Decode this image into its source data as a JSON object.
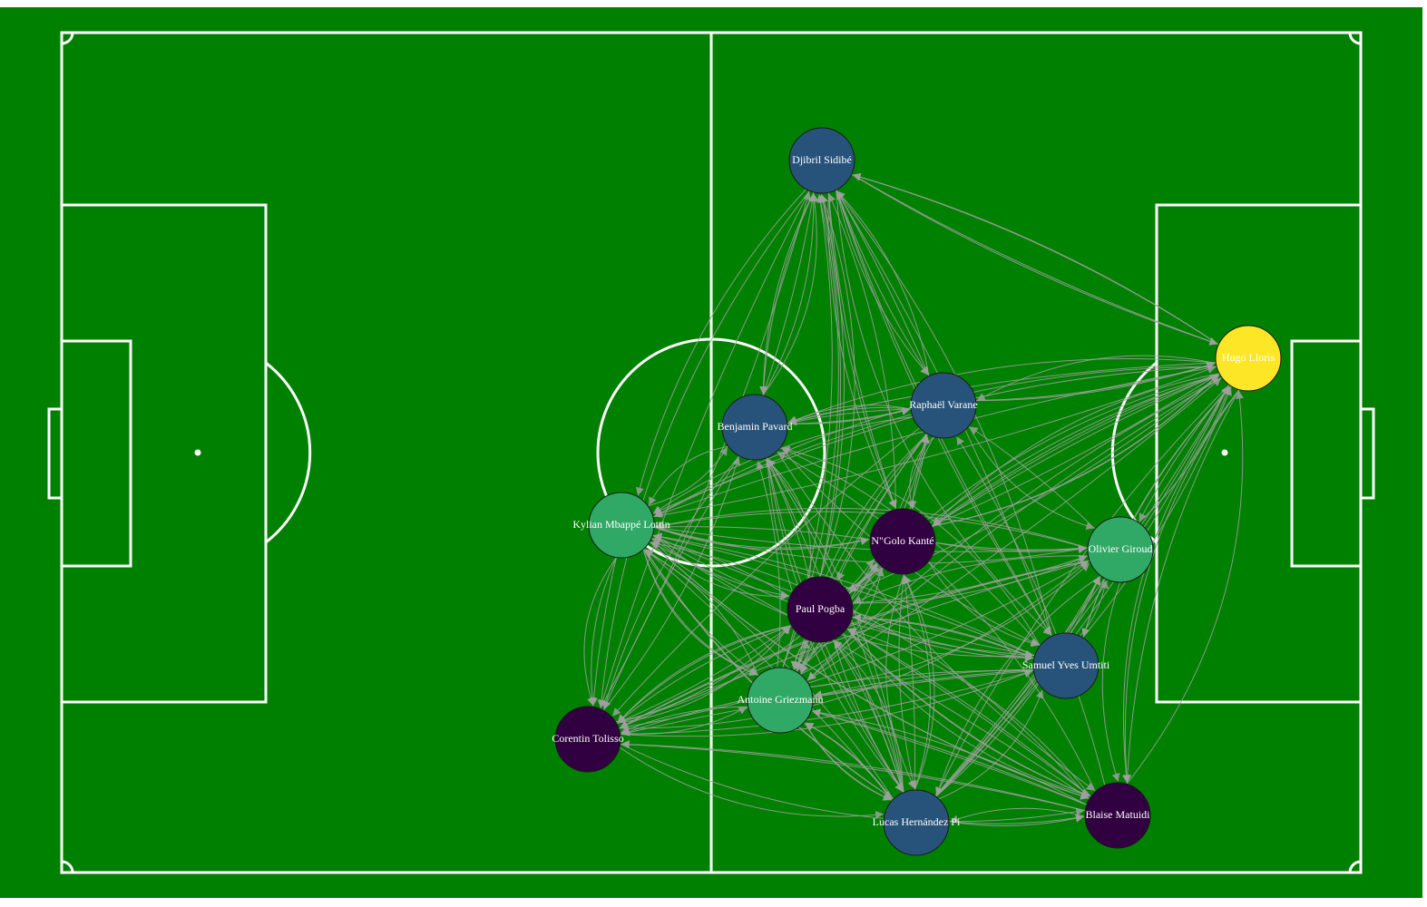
{
  "colors": {
    "pitch": "#008000",
    "lines": "#ffffff",
    "edges": "#a0a0a0",
    "cluster_purple": "#300040",
    "cluster_blue": "#27537a",
    "cluster_green": "#30a866",
    "cluster_yellow": "#fde625"
  },
  "players": [
    {
      "id": "sidibe",
      "name": "Djibril Sidibé",
      "color": "#27537a"
    },
    {
      "id": "lloris",
      "name": "Hugo Lloris",
      "color": "#fde625"
    },
    {
      "id": "varane",
      "name": "Raphaël Varane",
      "color": "#27537a"
    },
    {
      "id": "pavard",
      "name": "Benjamin Pavard",
      "color": "#27537a"
    },
    {
      "id": "mbappe",
      "name": "Kylian Mbappé Lottin",
      "color": "#30a866"
    },
    {
      "id": "kante",
      "name": "N\"Golo Kanté",
      "color": "#300040"
    },
    {
      "id": "giroud",
      "name": "Olivier Giroud",
      "color": "#30a866"
    },
    {
      "id": "pogba",
      "name": "Paul Pogba",
      "color": "#300040"
    },
    {
      "id": "umtiti",
      "name": "Samuel Yves Umtiti",
      "color": "#27537a"
    },
    {
      "id": "griezmann",
      "name": "Antoine Griezmann",
      "color": "#30a866"
    },
    {
      "id": "tolisso",
      "name": "Corentin Tolisso",
      "color": "#300040"
    },
    {
      "id": "hernandez",
      "name": "Lucas Hernández Pi",
      "color": "#27537a"
    },
    {
      "id": "matuidi",
      "name": "Blaise Matuidi",
      "color": "#300040"
    }
  ]
}
